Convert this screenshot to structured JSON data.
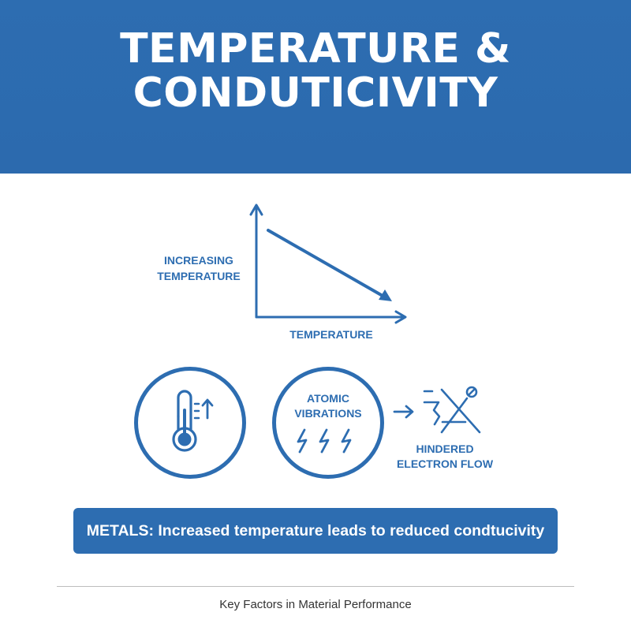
{
  "header": {
    "title_line1": "TEMPERATURE &",
    "title_line2": "CONDUTICIVITY"
  },
  "graph": {
    "y_label_line1": "INCREASING",
    "y_label_line2": "TEMPERATURE",
    "x_label": "TEMPERATURE"
  },
  "icons": {
    "thermometer": "thermometer-icon",
    "arrow_up": "arrow-up-icon",
    "lightning": "lightning-icon",
    "arrow_right": "arrow-right-icon",
    "blocked_electron": "blocked-electron-flow-icon"
  },
  "atomic": {
    "label_line1": "ATOMIC",
    "label_line2": "VIBRATIONS"
  },
  "hindered": {
    "label_line1": "HINDERED",
    "label_line2": "ELECTRON FLOW"
  },
  "banner": {
    "text": "METALS: Increased temperature leads to reduced condtucivity"
  },
  "footer": {
    "text": "Key Factors in Material Performance"
  },
  "colors": {
    "primary": "#2d6db1",
    "text_dark": "#333333",
    "background": "#ffffff"
  }
}
